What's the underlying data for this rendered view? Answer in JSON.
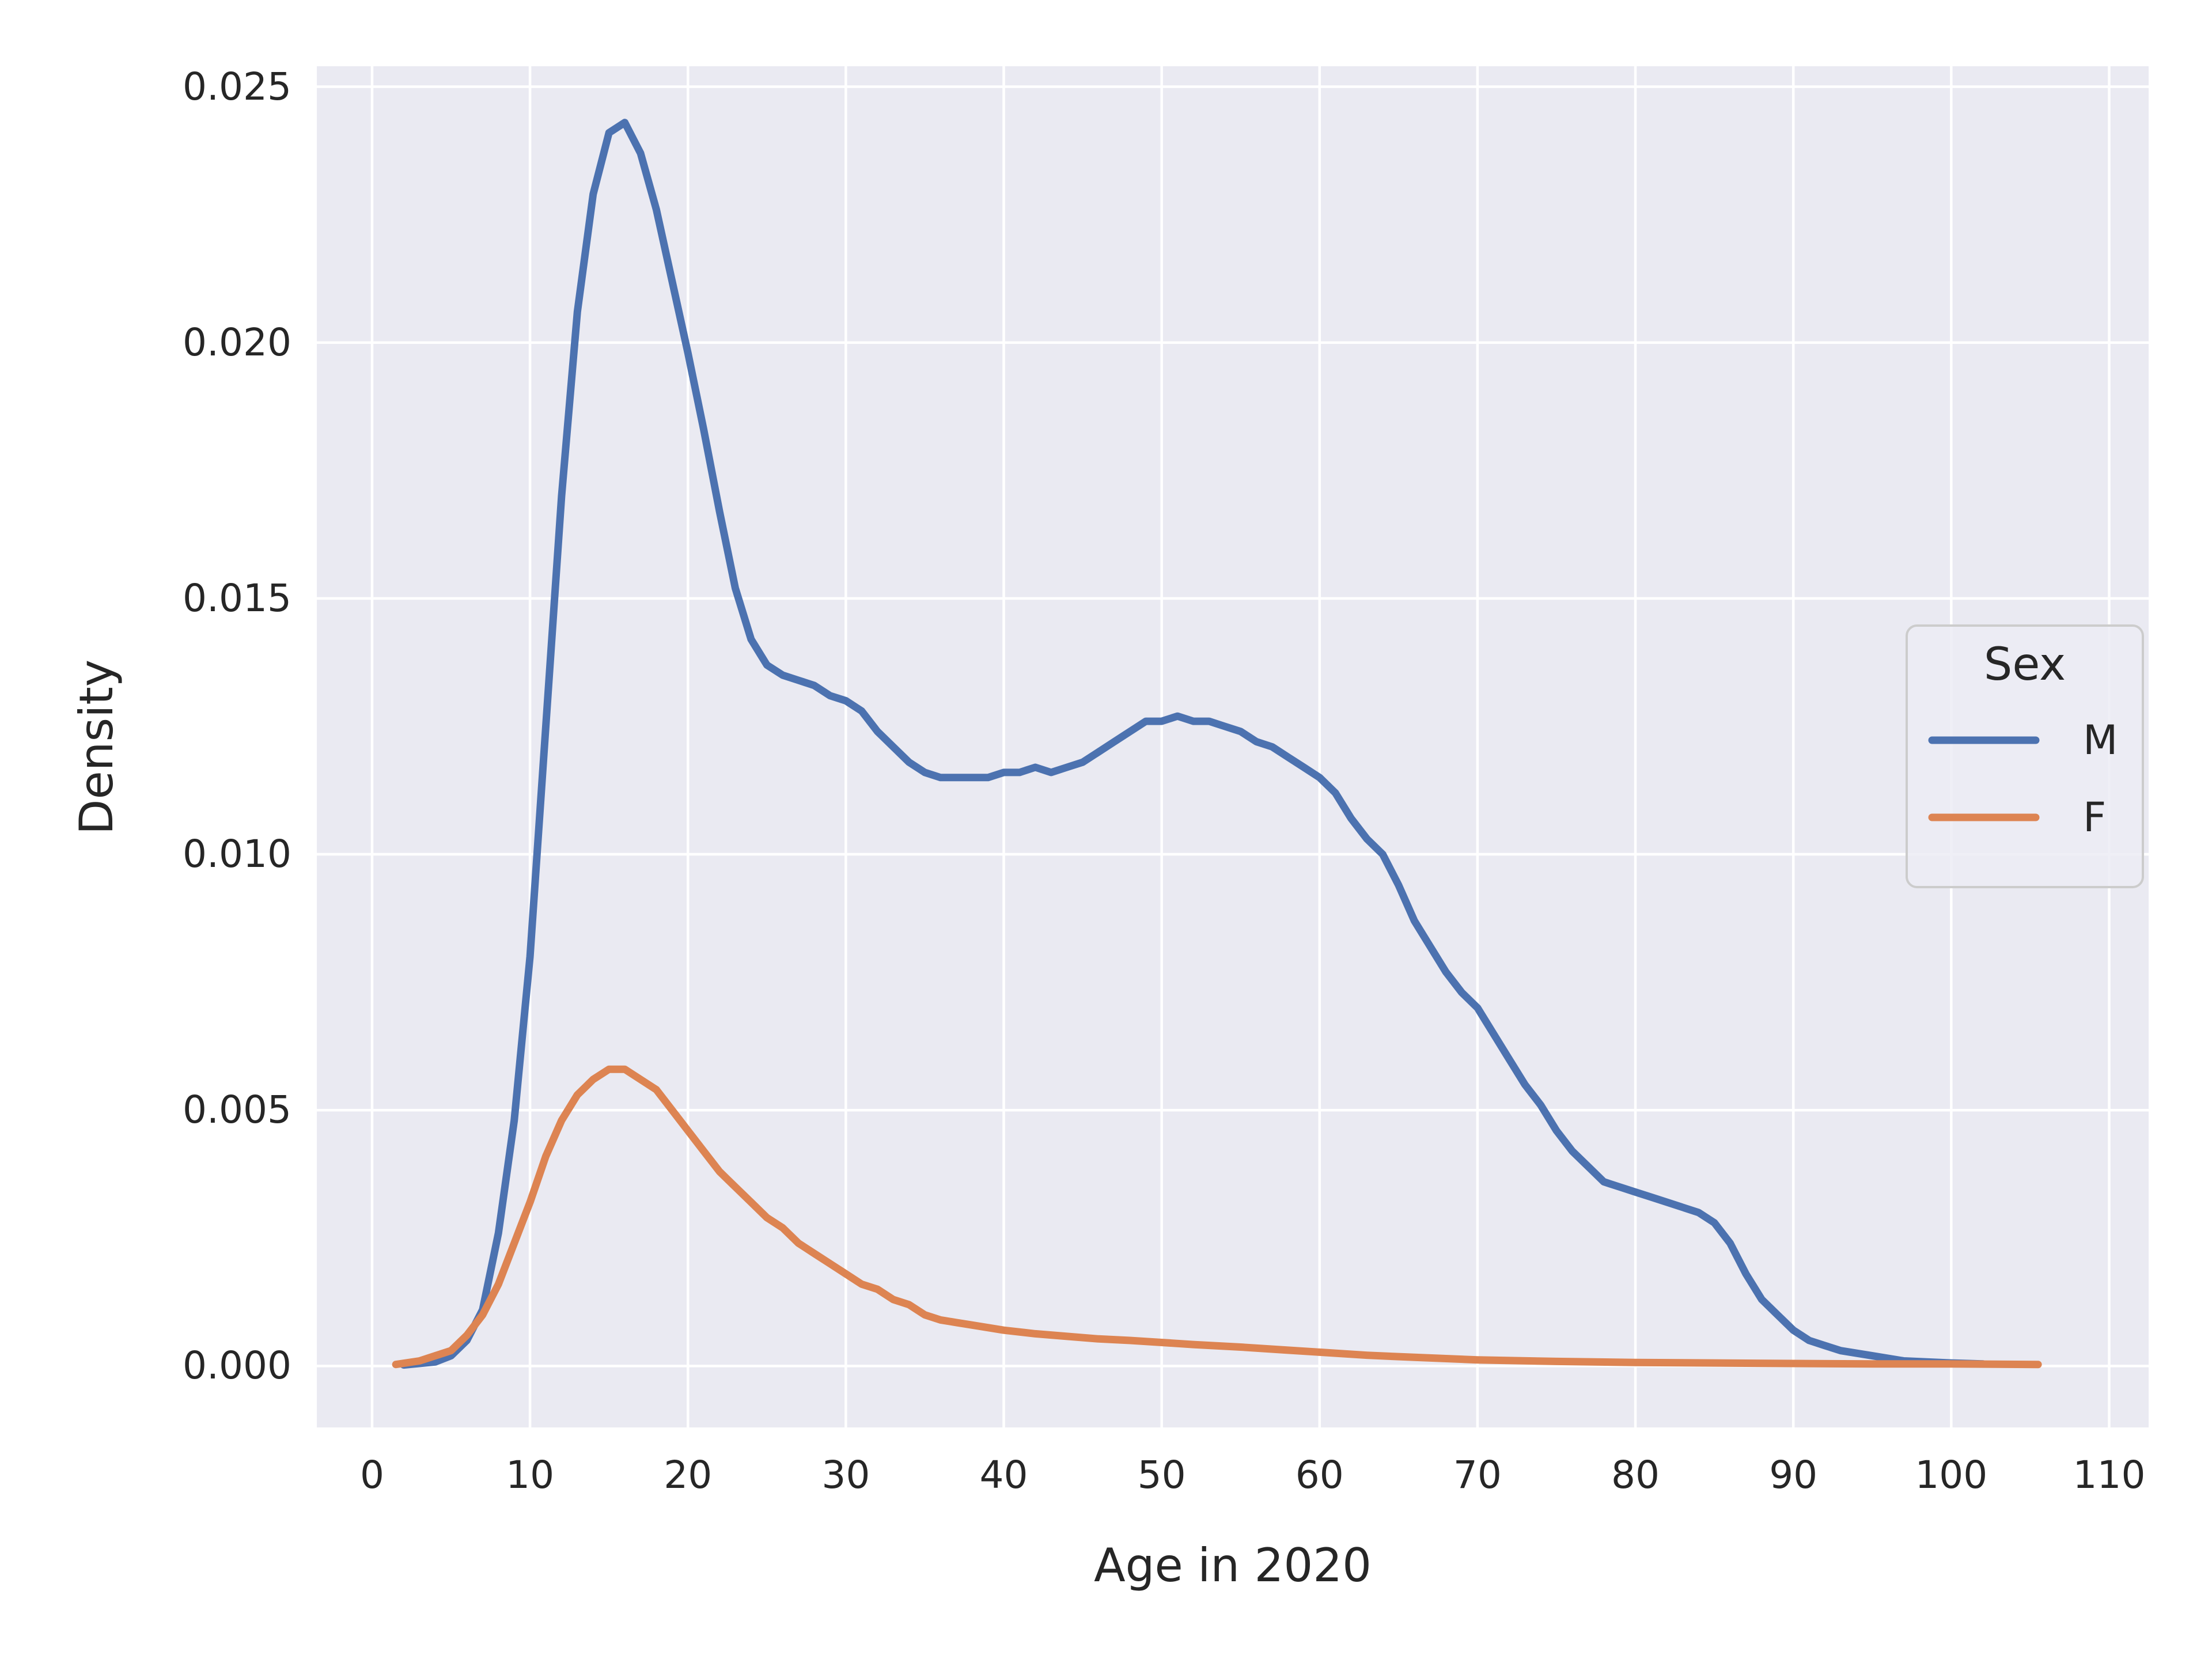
{
  "figure": {
    "background": "#ffffff",
    "axes_background": "#eaeaf2",
    "grid_color": "#ffffff",
    "text_color": "#262626"
  },
  "axes": {
    "xlabel": "Age in 2020",
    "ylabel": "Density"
  },
  "legend": {
    "title": "Sex",
    "items": [
      {
        "label": "M",
        "color": "#4c72b0"
      },
      {
        "label": "F",
        "color": "#dd8452"
      }
    ]
  },
  "chart_data": {
    "type": "line",
    "subtype": "kde-density",
    "title": "",
    "xlabel": "Age in 2020",
    "ylabel": "Density",
    "legend_title": "Sex",
    "legend_position": "center right",
    "grid": true,
    "xlim": [
      -3.5,
      112.5
    ],
    "ylim": [
      -0.0012,
      0.0254
    ],
    "x_ticks": [
      0,
      10,
      20,
      30,
      40,
      50,
      60,
      70,
      80,
      90,
      100,
      110
    ],
    "y_ticks": [
      {
        "value": 0.0,
        "label": "0.000"
      },
      {
        "value": 0.005,
        "label": "0.005"
      },
      {
        "value": 0.01,
        "label": "0.010"
      },
      {
        "value": 0.015,
        "label": "0.015"
      },
      {
        "value": 0.02,
        "label": "0.020"
      },
      {
        "value": 0.025,
        "label": "0.025"
      }
    ],
    "line_width": 13,
    "series": [
      {
        "name": "M",
        "color": "#4c72b0",
        "points": [
          [
            2,
            2e-05
          ],
          [
            4,
            8e-05
          ],
          [
            5,
            0.0002
          ],
          [
            6,
            0.0005
          ],
          [
            7,
            0.0011
          ],
          [
            8,
            0.0026
          ],
          [
            9,
            0.0048
          ],
          [
            10,
            0.008
          ],
          [
            11,
            0.0125
          ],
          [
            12,
            0.017
          ],
          [
            13,
            0.0206
          ],
          [
            14,
            0.0229
          ],
          [
            15,
            0.0241
          ],
          [
            16,
            0.0243
          ],
          [
            17,
            0.0237
          ],
          [
            18,
            0.0226
          ],
          [
            19,
            0.0212
          ],
          [
            20,
            0.0198
          ],
          [
            21,
            0.0183
          ],
          [
            22,
            0.0167
          ],
          [
            23,
            0.0152
          ],
          [
            24,
            0.0142
          ],
          [
            25,
            0.0137
          ],
          [
            26,
            0.0135
          ],
          [
            27,
            0.0134
          ],
          [
            28,
            0.0133
          ],
          [
            29,
            0.0131
          ],
          [
            30,
            0.013
          ],
          [
            31,
            0.0128
          ],
          [
            32,
            0.0124
          ],
          [
            33,
            0.0121
          ],
          [
            34,
            0.0118
          ],
          [
            35,
            0.0116
          ],
          [
            36,
            0.0115
          ],
          [
            37,
            0.0115
          ],
          [
            38,
            0.0115
          ],
          [
            39,
            0.0115
          ],
          [
            40,
            0.0116
          ],
          [
            41,
            0.0116
          ],
          [
            42,
            0.0117
          ],
          [
            43,
            0.0116
          ],
          [
            44,
            0.0117
          ],
          [
            45,
            0.0118
          ],
          [
            46,
            0.012
          ],
          [
            47,
            0.0122
          ],
          [
            48,
            0.0124
          ],
          [
            49,
            0.0126
          ],
          [
            50,
            0.0126
          ],
          [
            51,
            0.0127
          ],
          [
            52,
            0.0126
          ],
          [
            53,
            0.0126
          ],
          [
            54,
            0.0125
          ],
          [
            55,
            0.0124
          ],
          [
            56,
            0.0122
          ],
          [
            57,
            0.0121
          ],
          [
            58,
            0.0119
          ],
          [
            59,
            0.0117
          ],
          [
            60,
            0.0115
          ],
          [
            61,
            0.0112
          ],
          [
            62,
            0.0107
          ],
          [
            63,
            0.0103
          ],
          [
            64,
            0.01
          ],
          [
            65,
            0.0094
          ],
          [
            66,
            0.0087
          ],
          [
            67,
            0.0082
          ],
          [
            68,
            0.0077
          ],
          [
            69,
            0.0073
          ],
          [
            70,
            0.007
          ],
          [
            71,
            0.0065
          ],
          [
            72,
            0.006
          ],
          [
            73,
            0.0055
          ],
          [
            74,
            0.0051
          ],
          [
            75,
            0.0046
          ],
          [
            76,
            0.0042
          ],
          [
            77,
            0.0039
          ],
          [
            78,
            0.0036
          ],
          [
            79,
            0.0035
          ],
          [
            80,
            0.0034
          ],
          [
            81,
            0.0033
          ],
          [
            82,
            0.0032
          ],
          [
            83,
            0.0031
          ],
          [
            84,
            0.003
          ],
          [
            85,
            0.0028
          ],
          [
            86,
            0.0024
          ],
          [
            87,
            0.0018
          ],
          [
            88,
            0.0013
          ],
          [
            89,
            0.001
          ],
          [
            90,
            0.0007
          ],
          [
            91,
            0.0005
          ],
          [
            92,
            0.0004
          ],
          [
            93,
            0.0003
          ],
          [
            95,
            0.0002
          ],
          [
            97,
            0.0001
          ],
          [
            100,
            6e-05
          ],
          [
            102,
            4e-05
          ]
        ]
      },
      {
        "name": "F",
        "color": "#dd8452",
        "points": [
          [
            1.5,
            3e-05
          ],
          [
            3,
            0.0001
          ],
          [
            4,
            0.0002
          ],
          [
            5,
            0.0003
          ],
          [
            6,
            0.0006
          ],
          [
            7,
            0.001
          ],
          [
            8,
            0.0016
          ],
          [
            9,
            0.0024
          ],
          [
            10,
            0.0032
          ],
          [
            11,
            0.0041
          ],
          [
            12,
            0.0048
          ],
          [
            13,
            0.0053
          ],
          [
            14,
            0.0056
          ],
          [
            15,
            0.0058
          ],
          [
            16,
            0.0058
          ],
          [
            17,
            0.0056
          ],
          [
            18,
            0.0054
          ],
          [
            19,
            0.005
          ],
          [
            20,
            0.0046
          ],
          [
            21,
            0.0042
          ],
          [
            22,
            0.0038
          ],
          [
            23,
            0.0035
          ],
          [
            24,
            0.0032
          ],
          [
            25,
            0.0029
          ],
          [
            26,
            0.0027
          ],
          [
            27,
            0.0024
          ],
          [
            28,
            0.0022
          ],
          [
            29,
            0.002
          ],
          [
            30,
            0.0018
          ],
          [
            31,
            0.0016
          ],
          [
            32,
            0.0015
          ],
          [
            33,
            0.0013
          ],
          [
            34,
            0.0012
          ],
          [
            35,
            0.001
          ],
          [
            36,
            0.0009
          ],
          [
            37,
            0.00085
          ],
          [
            38,
            0.0008
          ],
          [
            40,
            0.0007
          ],
          [
            42,
            0.00063
          ],
          [
            44,
            0.00058
          ],
          [
            46,
            0.00053
          ],
          [
            48,
            0.0005
          ],
          [
            50,
            0.00046
          ],
          [
            52,
            0.00042
          ],
          [
            55,
            0.00037
          ],
          [
            58,
            0.00031
          ],
          [
            60,
            0.00027
          ],
          [
            63,
            0.00021
          ],
          [
            66,
            0.00017
          ],
          [
            70,
            0.00012
          ],
          [
            75,
            9e-05
          ],
          [
            80,
            7e-05
          ],
          [
            85,
            6e-05
          ],
          [
            90,
            5e-05
          ],
          [
            95,
            4e-05
          ],
          [
            100,
            4e-05
          ],
          [
            105.5,
            3e-05
          ]
        ]
      }
    ]
  }
}
